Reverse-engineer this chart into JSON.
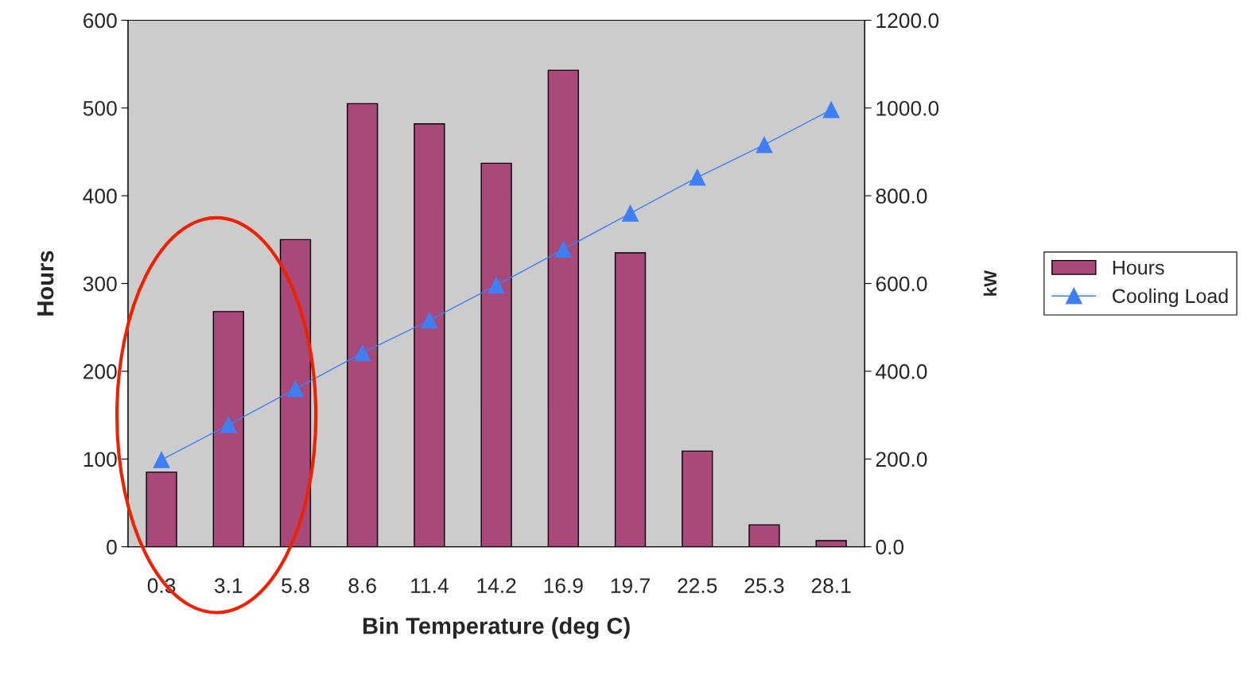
{
  "chart_data": {
    "type": "bar",
    "xlabel": "Bin Temperature (deg C)",
    "ylabel": "Hours",
    "y2label": "kW",
    "categories": [
      "0.3",
      "3.1",
      "5.8",
      "8.6",
      "11.4",
      "14.2",
      "16.9",
      "19.7",
      "22.5",
      "25.3",
      "28.1"
    ],
    "series": [
      {
        "name": "Hours",
        "color": "#a8497a",
        "values": [
          85,
          268,
          350,
          505,
          482,
          437,
          543,
          335,
          109,
          25,
          7
        ]
      },
      {
        "name": "Cooling Load",
        "type": "line",
        "axis": "y2",
        "color": "#3f7ff5",
        "marker": "triangle",
        "line_style": "solid",
        "values": [
          198,
          278,
          360,
          442,
          516,
          596,
          678,
          760,
          842,
          916,
          996
        ]
      }
    ],
    "ylim": [
      0,
      600
    ],
    "yticks": [
      0,
      100,
      200,
      300,
      400,
      500,
      600
    ],
    "y2lim": [
      0,
      1200
    ],
    "y2ticks": [
      {
        "value": 0,
        "label": "0.0"
      },
      {
        "value": 200,
        "label": "200.0"
      },
      {
        "value": 400,
        "label": "400.0"
      },
      {
        "value": 600,
        "label": "600.0"
      },
      {
        "value": 800,
        "label": "800.0"
      },
      {
        "value": 1000,
        "label": "1000.0"
      },
      {
        "value": 1200,
        "label": "1200.0"
      }
    ],
    "grid": false,
    "legend": "right"
  }
}
